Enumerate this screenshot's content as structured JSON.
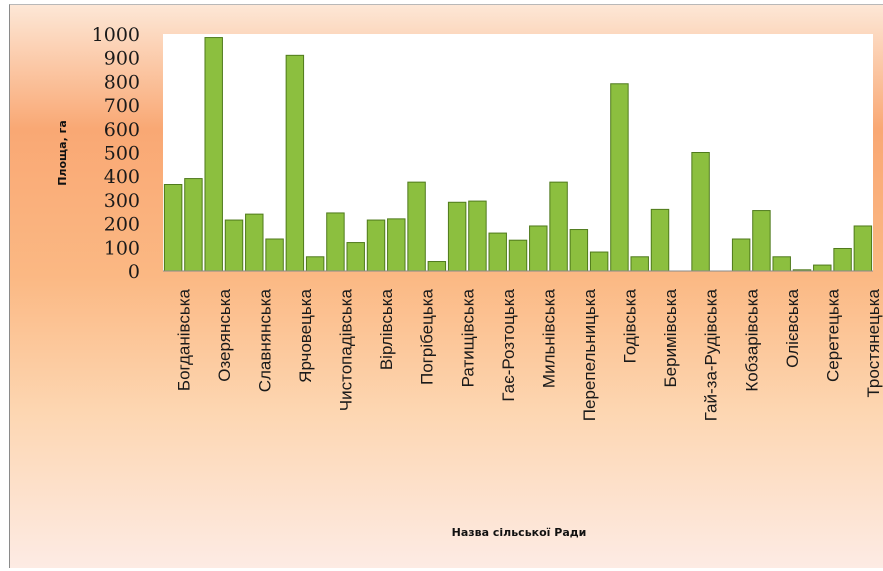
{
  "chart_data": {
    "type": "bar",
    "xlabel": "Назва сільської Ради",
    "ylabel": "Площа, га",
    "ylim": [
      0,
      1000
    ],
    "yticks": [
      0,
      100,
      200,
      300,
      400,
      500,
      600,
      700,
      800,
      900,
      1000
    ],
    "grid": false,
    "legend": "none",
    "bar_color": "#8cbf3f",
    "bar_edge_color": "#4f7a1c",
    "categories": [
      "Богданівська",
      "",
      "Озерянська",
      "",
      "Славнянська",
      "",
      "Ярчовецька",
      "",
      "Чистопадівська",
      "",
      "Вірлівська",
      "",
      "Погрібецька",
      "",
      "Ратищівська",
      "",
      "Гає-Розтоцька",
      "",
      "Мильнівська",
      "",
      "Перепельницька",
      "",
      "Годівська",
      "",
      "Беримівська",
      "",
      "Гай-за-Рудівська",
      "",
      "Кобзарівська",
      "",
      "Олієвська",
      "",
      "Серетецька",
      "",
      "Тростянецька"
    ],
    "values": [
      365,
      390,
      985,
      215,
      240,
      135,
      910,
      60,
      245,
      120,
      215,
      220,
      375,
      40,
      290,
      295,
      160,
      130,
      190,
      375,
      175,
      80,
      790,
      60,
      260,
      0,
      500,
      0,
      135,
      255,
      60,
      5,
      25,
      95,
      190
    ]
  }
}
